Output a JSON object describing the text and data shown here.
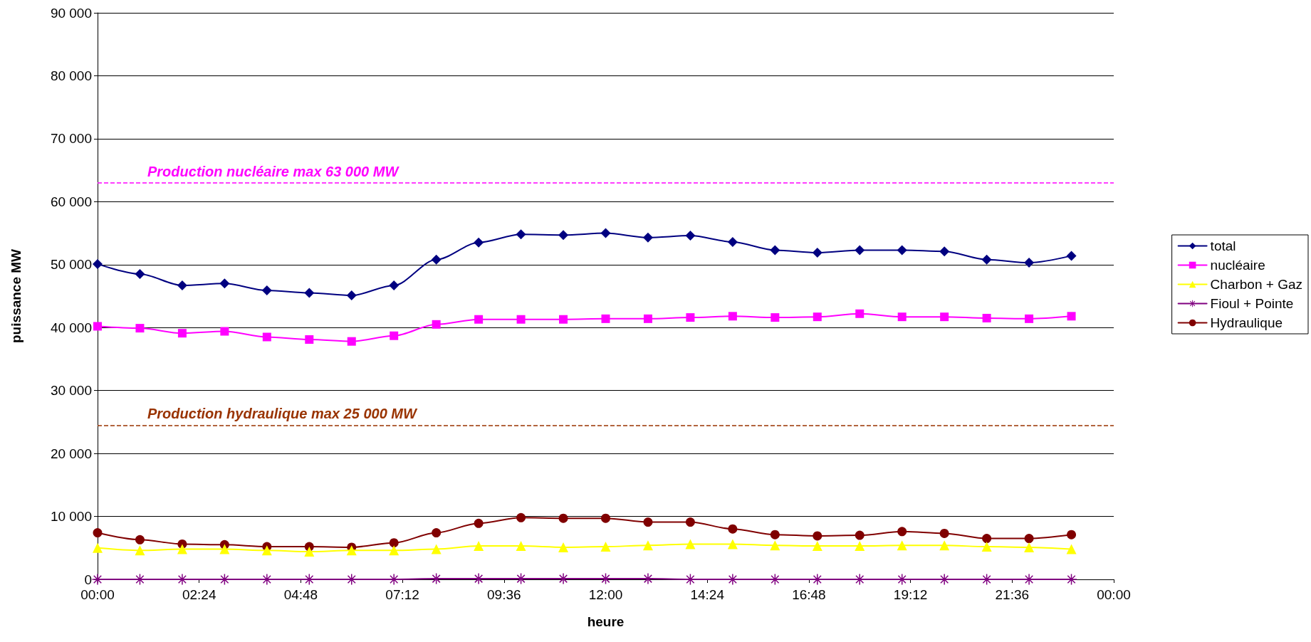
{
  "chart_data": {
    "type": "line",
    "xlabel": "heure",
    "ylabel": "puissance MW",
    "x": [
      0,
      1,
      2,
      3,
      4,
      5,
      6,
      7,
      8,
      9,
      10,
      11,
      12,
      13,
      14,
      15,
      16,
      17,
      18,
      19,
      20,
      21,
      22,
      23
    ],
    "series": [
      {
        "name": "total",
        "color": "#000080",
        "marker": "diamond",
        "values": [
          50100,
          48500,
          46700,
          47000,
          45900,
          45500,
          45100,
          46700,
          50800,
          53500,
          54800,
          54700,
          55000,
          54300,
          54600,
          53600,
          52300,
          51900,
          52300,
          52300,
          52100,
          50800,
          50300,
          51400
        ]
      },
      {
        "name": "nucléaire",
        "color": "#ff00ff",
        "marker": "square",
        "values": [
          40200,
          39900,
          39100,
          39400,
          38500,
          38100,
          37800,
          38700,
          40500,
          41300,
          41300,
          41300,
          41400,
          41400,
          41600,
          41800,
          41600,
          41700,
          42200,
          41700,
          41700,
          41500,
          41400,
          41800
        ]
      },
      {
        "name": "Charbon + Gaz",
        "color": "#ffff00",
        "marker": "triangle",
        "values": [
          5000,
          4600,
          4800,
          4800,
          4600,
          4400,
          4600,
          4600,
          4800,
          5300,
          5300,
          5100,
          5200,
          5400,
          5600,
          5600,
          5400,
          5300,
          5300,
          5400,
          5400,
          5200,
          5100,
          4800
        ]
      },
      {
        "name": "Fioul + Pointe",
        "color": "#800080",
        "marker": "cross",
        "values": [
          0,
          0,
          0,
          0,
          0,
          0,
          0,
          0,
          100,
          100,
          100,
          100,
          100,
          100,
          0,
          0,
          0,
          0,
          0,
          0,
          0,
          0,
          0,
          0
        ]
      },
      {
        "name": "Hydraulique",
        "color": "#800000",
        "marker": "circle",
        "values": [
          7400,
          6300,
          5600,
          5500,
          5200,
          5200,
          5100,
          5800,
          7400,
          8900,
          9800,
          9700,
          9700,
          9100,
          9100,
          8000,
          7100,
          6900,
          7000,
          7600,
          7300,
          6500,
          6500,
          7100
        ]
      }
    ],
    "xlim": [
      0,
      24
    ],
    "xticks": [
      {
        "value": 0,
        "label": "00:00"
      },
      {
        "value": 2.4,
        "label": "02:24"
      },
      {
        "value": 4.8,
        "label": "04:48"
      },
      {
        "value": 7.2,
        "label": "07:12"
      },
      {
        "value": 9.6,
        "label": "09:36"
      },
      {
        "value": 12,
        "label": "12:00"
      },
      {
        "value": 14.4,
        "label": "14:24"
      },
      {
        "value": 16.8,
        "label": "16:48"
      },
      {
        "value": 19.2,
        "label": "19:12"
      },
      {
        "value": 21.6,
        "label": "21:36"
      },
      {
        "value": 24,
        "label": "00:00"
      }
    ],
    "ylim": [
      0,
      90000
    ],
    "yticks": [
      0,
      {
        "value": 10000,
        "label": "10 000"
      },
      {
        "value": 20000,
        "label": "20 000"
      },
      {
        "value": 30000,
        "label": "30 000"
      },
      {
        "value": 40000,
        "label": "40 000"
      },
      {
        "value": 50000,
        "label": "50 000"
      },
      {
        "value": 60000,
        "label": "60 000"
      },
      {
        "value": 70000,
        "label": "70 000"
      },
      {
        "value": 80000,
        "label": "80 000"
      },
      {
        "value": 90000,
        "label": "90 000"
      }
    ],
    "ref_lines": [
      {
        "axis": "y",
        "value": 63000,
        "label": "Production nucléaire max 63 000 MW",
        "color": "#ff00ff",
        "line_style": "dashed"
      },
      {
        "axis": "y",
        "value": 24500,
        "label": "Production hydraulique max 25 000 MW",
        "color": "#993300",
        "line_style": "dashed"
      }
    ],
    "grid": "y",
    "legend": "right",
    "line_style": "solid"
  }
}
